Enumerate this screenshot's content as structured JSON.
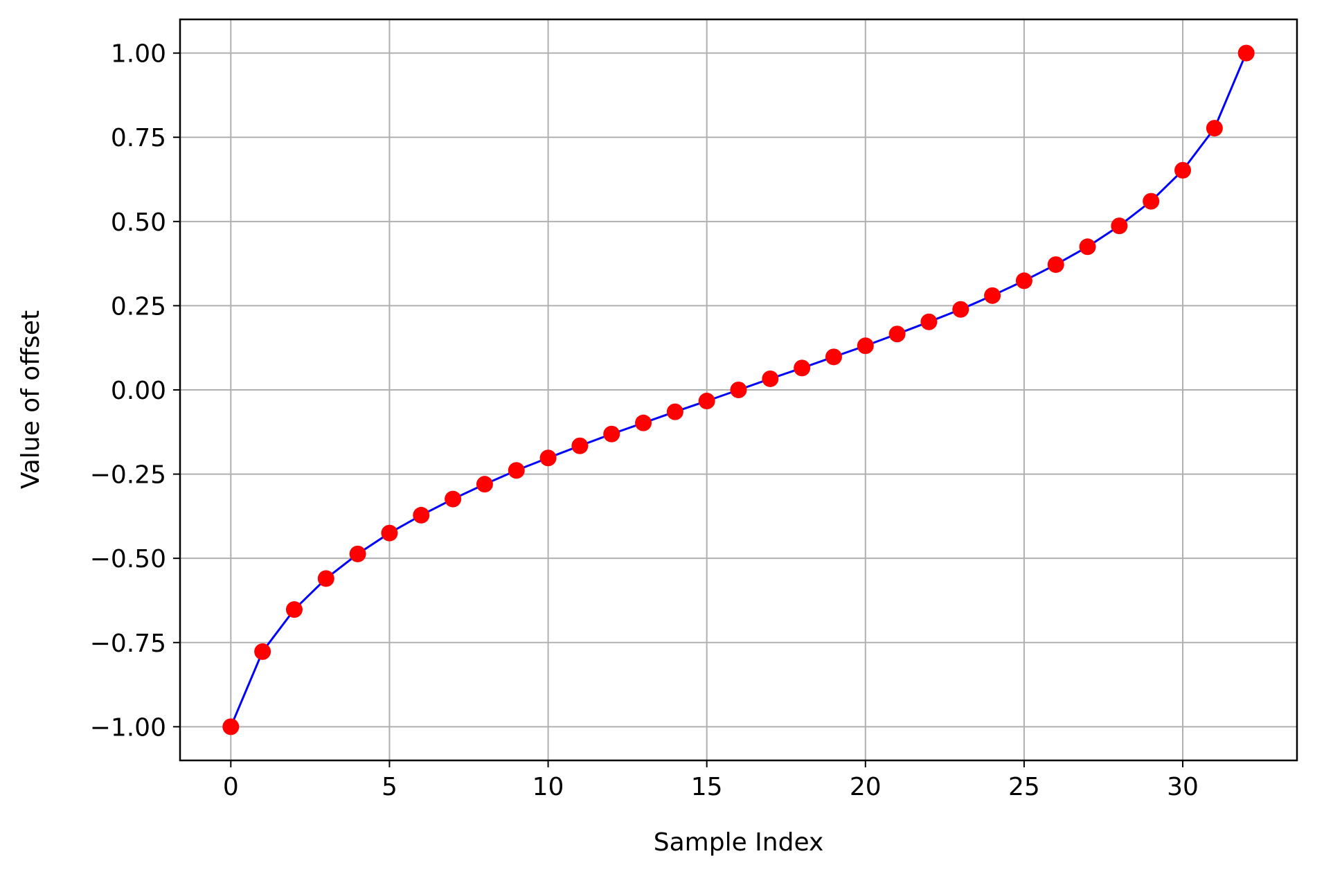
{
  "chart_data": {
    "type": "line",
    "title": "",
    "xlabel": "Sample Index",
    "ylabel": "Value of offset",
    "xlim": [
      -1.6,
      33.6
    ],
    "ylim": [
      -1.1,
      1.1
    ],
    "grid": true,
    "x_ticks": [
      0,
      5,
      10,
      15,
      20,
      25,
      30
    ],
    "x_tick_labels": [
      "0",
      "5",
      "10",
      "15",
      "20",
      "25",
      "30"
    ],
    "y_ticks": [
      1.0,
      0.75,
      0.5,
      0.25,
      0.0,
      -0.25,
      -0.5,
      -0.75,
      -1.0
    ],
    "y_tick_labels": [
      "1.00",
      "0.75",
      "0.50",
      "0.25",
      "0.00",
      "−0.25",
      "−0.50",
      "−0.75",
      "−1.00"
    ],
    "line_color": "#0000ff",
    "marker_color": "#ff0000",
    "series": [
      {
        "x": [
          0,
          1,
          2,
          3,
          4,
          5,
          6,
          7,
          8,
          9,
          10,
          11,
          12,
          13,
          14,
          15,
          16,
          17,
          18,
          19,
          20,
          21,
          22,
          23,
          24,
          25,
          26,
          27,
          28,
          29,
          30,
          31,
          32
        ],
        "values": [
          -1.0,
          -0.777,
          -0.652,
          -0.56,
          -0.487,
          -0.425,
          -0.372,
          -0.324,
          -0.28,
          -0.239,
          -0.202,
          -0.166,
          -0.131,
          -0.098,
          -0.065,
          -0.033,
          0.0,
          0.033,
          0.065,
          0.098,
          0.131,
          0.166,
          0.202,
          0.239,
          0.28,
          0.324,
          0.372,
          0.425,
          0.487,
          0.56,
          0.652,
          0.777,
          1.0
        ]
      }
    ]
  }
}
